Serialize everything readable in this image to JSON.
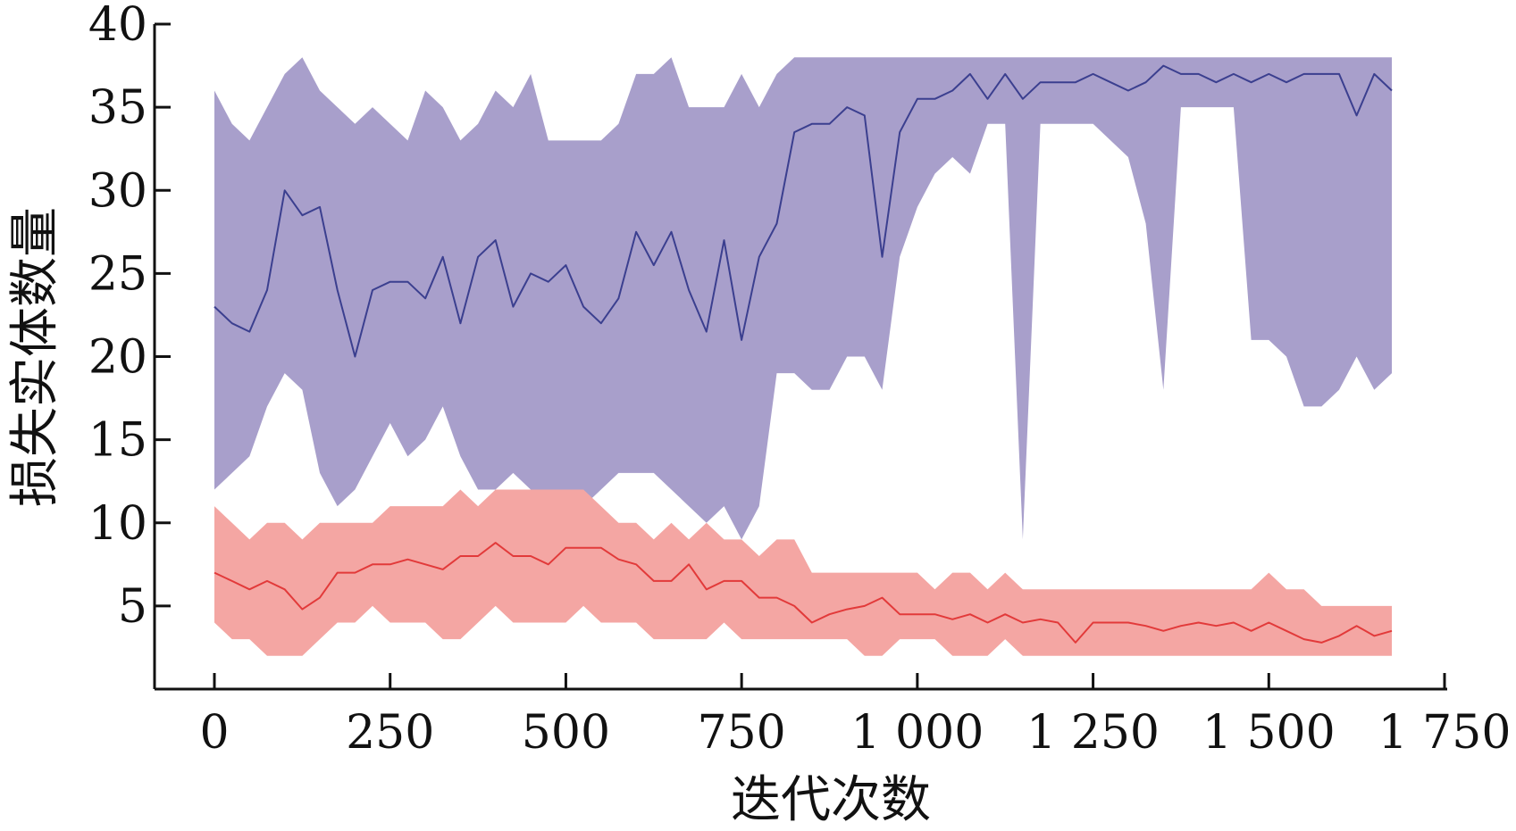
{
  "chart_data": {
    "type": "line",
    "xlabel": "迭代次数",
    "ylabel": "损失实体数量",
    "xlim": [
      0,
      1750
    ],
    "ylim": [
      0,
      40
    ],
    "x_ticks": [
      0,
      250,
      500,
      750,
      1000,
      1250,
      1500,
      1750
    ],
    "x_tick_labels": [
      "0",
      "250",
      "500",
      "750",
      "1 000",
      "1 250",
      "1 500",
      "1 750"
    ],
    "y_ticks": [
      5,
      10,
      15,
      20,
      25,
      30,
      35,
      40
    ],
    "y_tick_labels": [
      "5",
      "10",
      "15",
      "20",
      "25",
      "30",
      "35",
      "40"
    ],
    "grid": false,
    "legend": "none",
    "series": [
      {
        "color": "#3b3f8f",
        "band_color": "#a89fcb",
        "x": [
          0,
          25,
          50,
          75,
          100,
          125,
          150,
          175,
          200,
          225,
          250,
          275,
          300,
          325,
          350,
          375,
          400,
          425,
          450,
          475,
          500,
          525,
          550,
          575,
          600,
          625,
          650,
          675,
          700,
          725,
          750,
          775,
          800,
          825,
          850,
          875,
          900,
          925,
          950,
          975,
          1000,
          1025,
          1050,
          1075,
          1100,
          1125,
          1150,
          1175,
          1200,
          1225,
          1250,
          1275,
          1300,
          1325,
          1350,
          1375,
          1400,
          1425,
          1450,
          1475,
          1500,
          1525,
          1550,
          1575,
          1600,
          1625,
          1650,
          1675
        ],
        "values": [
          23,
          22,
          21.5,
          24,
          30,
          28.5,
          29,
          24,
          20,
          24,
          24.5,
          24.5,
          23.5,
          26,
          22,
          26,
          27,
          23,
          25,
          24.5,
          25.5,
          23,
          22,
          23.5,
          27.5,
          25.5,
          27.5,
          24,
          21.5,
          27,
          21,
          26,
          28,
          33.5,
          34,
          34,
          35,
          34.5,
          26,
          33.5,
          35.5,
          35.5,
          36,
          37,
          35.5,
          37,
          35.5,
          36.5,
          36.5,
          36.5,
          37,
          36.5,
          36,
          36.5,
          37.5,
          37,
          37,
          36.5,
          37,
          36.5,
          37,
          36.5,
          37,
          37,
          37,
          34.5,
          37,
          36
        ],
        "lower": [
          12,
          13,
          14,
          17,
          19,
          18,
          13,
          11,
          12,
          14,
          16,
          14,
          15,
          17,
          14,
          12,
          12,
          13,
          12,
          11,
          10,
          11,
          12,
          13,
          13,
          13,
          12,
          11,
          10,
          11,
          9,
          11,
          19,
          19,
          18,
          18,
          20,
          20,
          18,
          26,
          29,
          31,
          32,
          31,
          34,
          34,
          9,
          34,
          34,
          34,
          34,
          33,
          32,
          28,
          18,
          35,
          35,
          35,
          35,
          21,
          21,
          20,
          17,
          17,
          18,
          20,
          18,
          19
        ],
        "upper": [
          36,
          34,
          33,
          35,
          37,
          38,
          36,
          35,
          34,
          35,
          34,
          33,
          36,
          35,
          33,
          34,
          36,
          35,
          37,
          33,
          33,
          33,
          33,
          34,
          37,
          37,
          38,
          35,
          35,
          35,
          37,
          35,
          37,
          38,
          38,
          38,
          38,
          38,
          38,
          38,
          38,
          38,
          38,
          38,
          38,
          38,
          38,
          38,
          38,
          38,
          38,
          38,
          38,
          38,
          38,
          38,
          38,
          38,
          38,
          38,
          38,
          38,
          38,
          38,
          38,
          38,
          38,
          38
        ]
      },
      {
        "color": "#e23a3a",
        "band_color": "#f4a6a3",
        "x": [
          0,
          25,
          50,
          75,
          100,
          125,
          150,
          175,
          200,
          225,
          250,
          275,
          300,
          325,
          350,
          375,
          400,
          425,
          450,
          475,
          500,
          525,
          550,
          575,
          600,
          625,
          650,
          675,
          700,
          725,
          750,
          775,
          800,
          825,
          850,
          875,
          900,
          925,
          950,
          975,
          1000,
          1025,
          1050,
          1075,
          1100,
          1125,
          1150,
          1175,
          1200,
          1225,
          1250,
          1275,
          1300,
          1325,
          1350,
          1375,
          1400,
          1425,
          1450,
          1475,
          1500,
          1525,
          1550,
          1575,
          1600,
          1625,
          1650,
          1675
        ],
        "values": [
          7,
          6.5,
          6,
          6.5,
          6,
          4.8,
          5.5,
          7,
          7,
          7.5,
          7.5,
          7.8,
          7.5,
          7.2,
          8,
          8,
          8.8,
          8,
          8,
          7.5,
          8.5,
          8.5,
          8.5,
          7.8,
          7.5,
          6.5,
          6.5,
          7.5,
          6,
          6.5,
          6.5,
          5.5,
          5.5,
          5,
          4,
          4.5,
          4.8,
          5,
          5.5,
          4.5,
          4.5,
          4.5,
          4.2,
          4.5,
          4,
          4.5,
          4,
          4.2,
          4,
          2.8,
          4,
          4,
          4,
          3.8,
          3.5,
          3.8,
          4,
          3.8,
          4,
          3.5,
          4,
          3.5,
          3,
          2.8,
          3.2,
          3.8,
          3.2,
          3.5
        ],
        "lower": [
          4,
          3,
          3,
          2,
          2,
          2,
          3,
          4,
          4,
          5,
          4,
          4,
          4,
          3,
          3,
          4,
          5,
          4,
          4,
          4,
          4,
          5,
          4,
          4,
          4,
          3,
          3,
          3,
          3,
          4,
          3,
          3,
          3,
          3,
          3,
          3,
          3,
          2,
          2,
          3,
          3,
          3,
          2,
          2,
          2,
          3,
          2,
          2,
          2,
          2,
          2,
          2,
          2,
          2,
          2,
          2,
          2,
          2,
          2,
          2,
          2,
          2,
          2,
          2,
          2,
          2,
          2,
          2
        ],
        "upper": [
          11,
          10,
          9,
          10,
          10,
          9,
          10,
          10,
          10,
          10,
          11,
          11,
          11,
          11,
          12,
          11,
          12,
          12,
          12,
          12,
          12,
          12,
          11,
          10,
          10,
          9,
          10,
          9,
          10,
          9,
          9,
          8,
          9,
          9,
          7,
          7,
          7,
          7,
          7,
          7,
          7,
          6,
          7,
          7,
          6,
          7,
          6,
          6,
          6,
          6,
          6,
          6,
          6,
          6,
          6,
          6,
          6,
          6,
          6,
          6,
          7,
          6,
          6,
          5,
          5,
          5,
          5,
          5
        ]
      }
    ]
  }
}
